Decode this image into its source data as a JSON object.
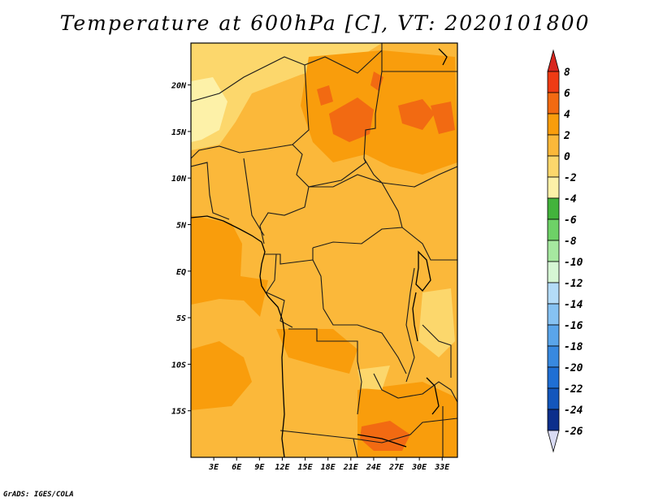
{
  "title": "Temperature at 600hPa [C], VT: 2020101800",
  "credit": "GrADS: IGES/COLA",
  "map": {
    "lon_ticks": [
      "3E",
      "6E",
      "9E",
      "12E",
      "15E",
      "18E",
      "21E",
      "24E",
      "27E",
      "30E",
      "33E"
    ],
    "lat_ticks": [
      "20N",
      "15N",
      "10N",
      "5N",
      "EQ",
      "5S",
      "10S",
      "15S"
    ],
    "lon_range": [
      0,
      35
    ],
    "lat_range": [
      -20,
      24.5
    ]
  },
  "colorbar": {
    "labels": [
      "8",
      "6",
      "4",
      "2",
      "0",
      "-2",
      "-4",
      "-6",
      "-8",
      "-10",
      "-12",
      "-14",
      "-16",
      "-18",
      "-20",
      "-22",
      "-24",
      "-26"
    ],
    "colors": {
      "top_arrow": "#d8261e",
      "band_8_6": "#ee3b14",
      "band_6_4": "#f26a12",
      "band_4_2": "#f99d0c",
      "band_2_0": "#fbb83a",
      "band_0_m2": "#fcd76c",
      "band_m2_m4": "#fdf1a8",
      "band_m4_m6": "#43b33c",
      "band_m6_m8": "#6ed167",
      "band_m8_m10": "#a6e8a0",
      "band_m10_m12": "#d6f6d4",
      "band_m12_m14": "#b4dcf8",
      "band_m14_m16": "#86c2f2",
      "band_m16_m18": "#5aa5ea",
      "band_m18_m20": "#3889e0",
      "band_m20_m22": "#1f6fd4",
      "band_m22_m24": "#1356bc",
      "band_m24_m26": "#0c2f8c",
      "bottom_arrow": "#d9dbf4"
    }
  }
}
